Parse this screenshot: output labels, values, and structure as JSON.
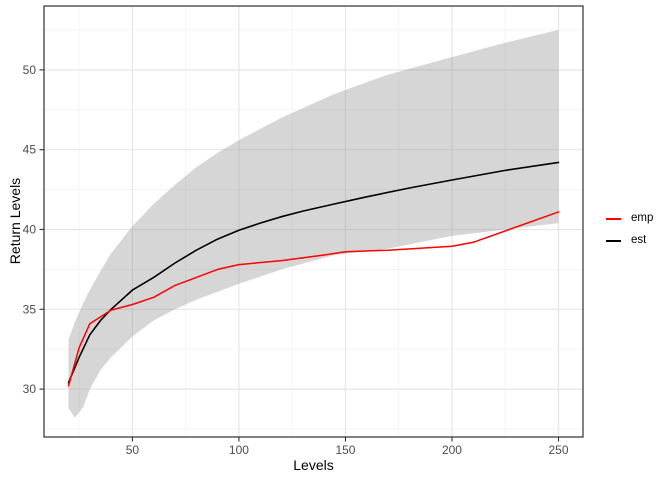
{
  "chart_data": {
    "type": "line",
    "title": "",
    "xlabel": "Levels",
    "ylabel": "Return Levels",
    "xlim": [
      8.5,
      261.5
    ],
    "ylim": [
      27,
      54
    ],
    "x_ticks": [
      50,
      100,
      150,
      200,
      250
    ],
    "y_ticks": [
      30,
      35,
      40,
      45,
      50
    ],
    "x_minor_ticks": [
      25,
      75,
      125,
      175,
      225
    ],
    "y_minor_ticks": [
      27.5,
      32.5,
      37.5,
      42.5,
      47.5,
      52.5
    ],
    "grid": true,
    "legend_position": "right",
    "band": {
      "name": "confidence-band",
      "fill": "rgba(127,127,127,0.32)",
      "x": [
        20,
        23,
        27,
        30,
        35,
        40,
        50,
        60,
        70,
        80,
        90,
        100,
        120,
        145,
        170,
        200,
        225,
        250
      ],
      "lower": [
        28.8,
        28.2,
        28.9,
        30.0,
        31.2,
        32.0,
        33.3,
        34.3,
        35.0,
        35.6,
        36.1,
        36.6,
        37.5,
        38.4,
        38.8,
        39.6,
        40.0,
        40.4
      ],
      "upper": [
        33.1,
        34.2,
        35.4,
        36.2,
        37.4,
        38.5,
        40.2,
        41.6,
        42.8,
        43.9,
        44.8,
        45.6,
        47.0,
        48.5,
        49.7,
        50.8,
        51.7,
        52.5
      ]
    },
    "series": [
      {
        "name": "est",
        "color": "#000000",
        "width": 1.6,
        "x": [
          20,
          25,
          30,
          35,
          40,
          45,
          50,
          60,
          70,
          80,
          90,
          100,
          110,
          120,
          130,
          145,
          160,
          180,
          200,
          225,
          250
        ],
        "y": [
          30.4,
          32.0,
          33.4,
          34.3,
          35.0,
          35.6,
          36.2,
          37.0,
          37.9,
          38.7,
          39.4,
          39.95,
          40.4,
          40.8,
          41.15,
          41.6,
          42.05,
          42.6,
          43.1,
          43.7,
          44.2
        ]
      },
      {
        "name": "emp",
        "color": "#ff0000",
        "width": 1.5,
        "x": [
          20,
          25,
          30,
          40,
          50,
          60,
          70,
          80,
          90,
          100,
          120,
          140,
          150,
          170,
          200,
          210,
          250
        ],
        "y": [
          30.2,
          32.6,
          34.1,
          34.95,
          35.3,
          35.75,
          36.5,
          37.0,
          37.5,
          37.8,
          38.05,
          38.4,
          38.6,
          38.7,
          38.95,
          39.2,
          41.1
        ]
      }
    ],
    "colors": {
      "grid_major": "#e7e7e7",
      "grid_minor": "#f3f3f3",
      "panel_border": "#2f2f2f",
      "tick_mark": "#333333",
      "tick_label": "#4d4d4d"
    }
  },
  "legend": {
    "items": [
      {
        "label": "emp",
        "color": "#ff0000"
      },
      {
        "label": "est",
        "color": "#000000"
      }
    ]
  }
}
